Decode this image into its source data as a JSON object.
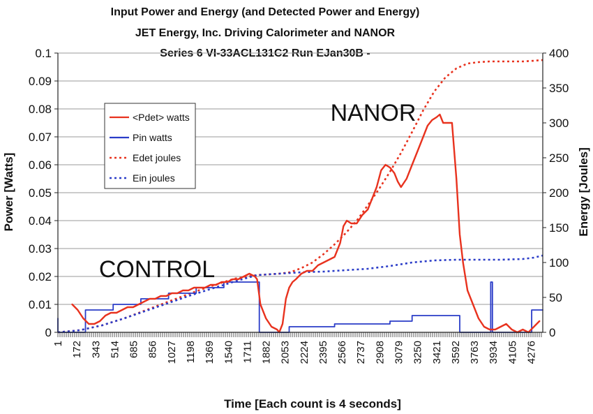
{
  "chart_data": {
    "type": "line",
    "title_lines": [
      "Input Power and Energy (and Detected Power and Energy)",
      "JET Energy, Inc. Driving Calorimeter and NANOR",
      "Series 6  VI-33ACL131C2 Run EJan30B -"
    ],
    "xlabel": "Time [Each count is 4 seconds]",
    "ylabel_left": "Power [Watts]",
    "ylabel_right": "Energy [Joules]",
    "x_tick_labels": [
      "1",
      "172",
      "343",
      "514",
      "685",
      "856",
      "1027",
      "1198",
      "1369",
      "1540",
      "1711",
      "1882",
      "2053",
      "2224",
      "2395",
      "2566",
      "2737",
      "2908",
      "3079",
      "3250",
      "3421",
      "3592",
      "3763",
      "3934",
      "4105",
      "4276"
    ],
    "xlim": [
      1,
      4380
    ],
    "ylim_left": [
      0,
      0.1
    ],
    "ylim_right": [
      0,
      400
    ],
    "y_ticks_left": [
      "0",
      "0.01",
      "0.02",
      "0.03",
      "0.04",
      "0.05",
      "0.06",
      "0.07",
      "0.08",
      "0.09",
      "0.1"
    ],
    "y_ticks_right": [
      "0",
      "50",
      "100",
      "150",
      "200",
      "250",
      "300",
      "350",
      "400"
    ],
    "grid": true,
    "legend_position": "upper-left",
    "annotations": [
      {
        "text": "NANOR",
        "x": 2950,
        "y": 0.077
      },
      {
        "text": "CONTROL",
        "x": 1020,
        "y": 0.022
      }
    ],
    "series": [
      {
        "name": "<Pdet> watts",
        "axis": "left",
        "color": "#e8321e",
        "style": "solid",
        "x": [
          130,
          180,
          230,
          280,
          330,
          380,
          430,
          480,
          530,
          580,
          630,
          680,
          730,
          780,
          830,
          880,
          930,
          980,
          1030,
          1080,
          1130,
          1180,
          1230,
          1280,
          1330,
          1380,
          1430,
          1480,
          1530,
          1580,
          1630,
          1680,
          1730,
          1780,
          1800,
          1830,
          1880,
          1930,
          1980,
          2000,
          2030,
          2060,
          2090,
          2120,
          2150,
          2200,
          2250,
          2300,
          2350,
          2400,
          2450,
          2500,
          2550,
          2580,
          2610,
          2650,
          2700,
          2750,
          2800,
          2850,
          2880,
          2920,
          2960,
          3000,
          3040,
          3070,
          3100,
          3150,
          3200,
          3250,
          3300,
          3340,
          3380,
          3420,
          3450,
          3480,
          3520,
          3560,
          3600,
          3630,
          3660,
          3700,
          3750,
          3800,
          3850,
          3900,
          3950,
          4000,
          4050,
          4100,
          4150,
          4200,
          4250,
          4300,
          4350
        ],
        "values": [
          0.01,
          0.008,
          0.005,
          0.003,
          0.003,
          0.004,
          0.006,
          0.007,
          0.007,
          0.008,
          0.009,
          0.009,
          0.01,
          0.011,
          0.012,
          0.012,
          0.013,
          0.013,
          0.014,
          0.014,
          0.015,
          0.015,
          0.016,
          0.016,
          0.016,
          0.017,
          0.017,
          0.018,
          0.018,
          0.019,
          0.019,
          0.02,
          0.021,
          0.02,
          0.019,
          0.01,
          0.005,
          0.002,
          0.001,
          0.0,
          0.003,
          0.012,
          0.016,
          0.018,
          0.019,
          0.021,
          0.022,
          0.022,
          0.024,
          0.025,
          0.026,
          0.027,
          0.032,
          0.038,
          0.04,
          0.039,
          0.039,
          0.042,
          0.044,
          0.049,
          0.052,
          0.058,
          0.06,
          0.059,
          0.057,
          0.054,
          0.052,
          0.055,
          0.06,
          0.065,
          0.07,
          0.074,
          0.076,
          0.077,
          0.078,
          0.075,
          0.075,
          0.075,
          0.055,
          0.035,
          0.025,
          0.015,
          0.01,
          0.005,
          0.002,
          0.001,
          0.001,
          0.002,
          0.003,
          0.001,
          0.0,
          0.001,
          0.0,
          0.002,
          0.004
        ]
      },
      {
        "name": "Pin watts",
        "axis": "left",
        "color": "#2a3cc8",
        "style": "solid",
        "x": [
          1,
          1,
          20,
          250,
          250,
          500,
          500,
          750,
          750,
          1000,
          1000,
          1250,
          1250,
          1500,
          1500,
          1820,
          1820,
          2090,
          2090,
          2300,
          2300,
          2500,
          2500,
          2750,
          2750,
          3000,
          3000,
          3200,
          3200,
          3630,
          3630,
          3910,
          3910,
          3925,
          3925,
          4280,
          4280,
          4380
        ],
        "values": [
          0.005,
          0.0,
          0.0,
          0.0,
          0.008,
          0.008,
          0.01,
          0.01,
          0.012,
          0.012,
          0.014,
          0.014,
          0.016,
          0.016,
          0.018,
          0.018,
          0.0,
          0.0,
          0.002,
          0.002,
          0.002,
          0.002,
          0.003,
          0.003,
          0.003,
          0.003,
          0.004,
          0.004,
          0.006,
          0.006,
          0.0,
          0.0,
          0.018,
          0.018,
          0.0,
          0.0,
          0.008,
          0.008
        ]
      },
      {
        "name": "Edet joules",
        "axis": "right",
        "color": "#e8321e",
        "style": "dotted",
        "x": [
          1,
          200,
          400,
          600,
          800,
          1000,
          1200,
          1400,
          1600,
          1800,
          2000,
          2100,
          2200,
          2300,
          2400,
          2500,
          2600,
          2700,
          2800,
          2900,
          3000,
          3100,
          3200,
          3300,
          3400,
          3500,
          3600,
          3700,
          3800,
          3900,
          4000,
          4100,
          4200,
          4300,
          4380
        ],
        "values": [
          0,
          3,
          10,
          20,
          32,
          44,
          56,
          67,
          77,
          82,
          84,
          86,
          92,
          100,
          112,
          126,
          142,
          160,
          182,
          205,
          230,
          257,
          287,
          318,
          345,
          365,
          378,
          385,
          387,
          388,
          388,
          388,
          388,
          389,
          390
        ]
      },
      {
        "name": "Ein joules",
        "axis": "right",
        "color": "#2a3cc8",
        "style": "dotted",
        "x": [
          1,
          200,
          400,
          600,
          800,
          1000,
          1200,
          1400,
          1600,
          1800,
          2000,
          2100,
          2200,
          2400,
          2600,
          2800,
          3000,
          3200,
          3400,
          3600,
          3800,
          4000,
          4200,
          4300,
          4380
        ],
        "values": [
          0,
          3,
          10,
          20,
          31,
          42,
          53,
          63,
          73,
          82,
          84,
          85,
          86,
          87,
          89,
          91,
          95,
          100,
          103,
          104,
          104,
          104,
          105,
          107,
          110
        ]
      }
    ]
  }
}
